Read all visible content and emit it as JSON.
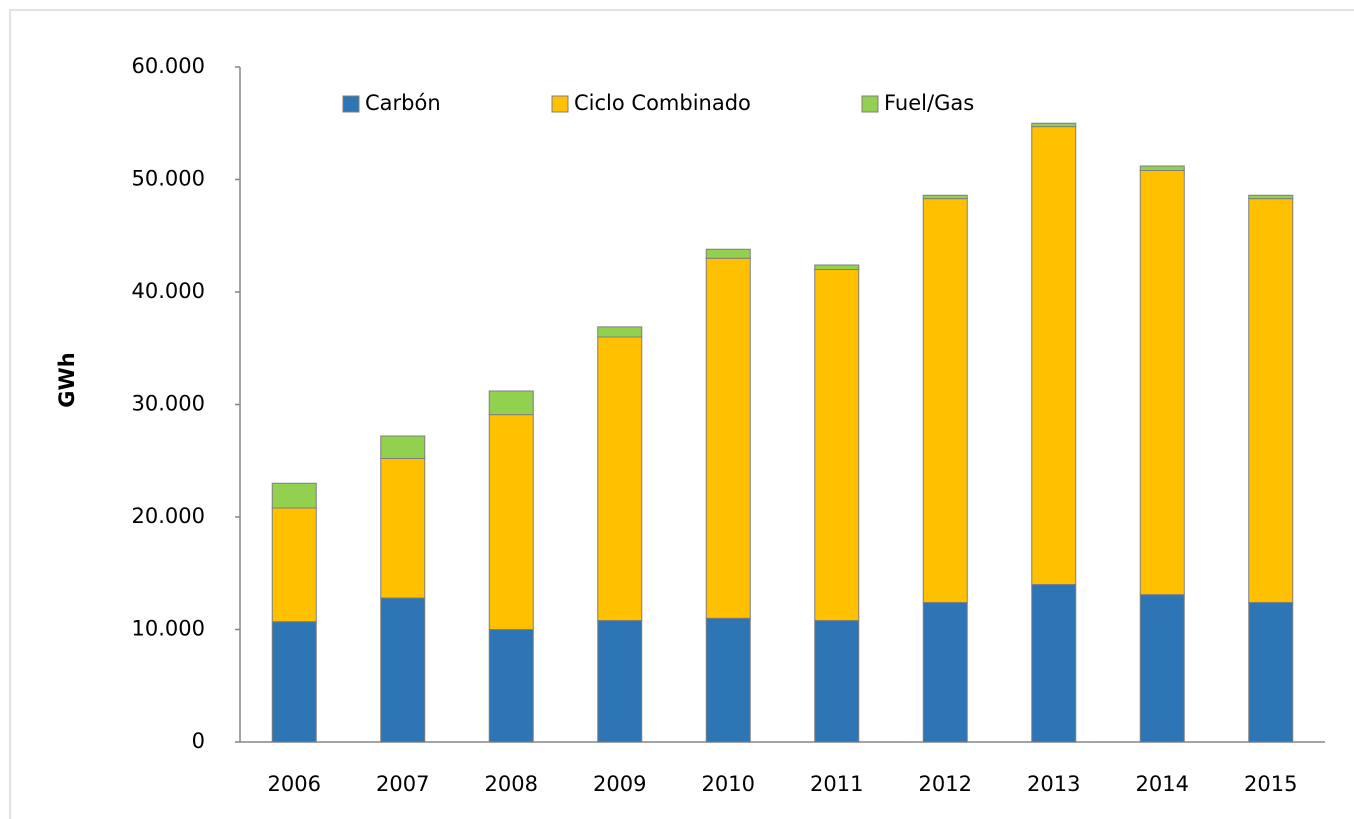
{
  "chart_data": {
    "type": "stacked_bar",
    "y_label": "GWh",
    "categories": [
      "2006",
      "2007",
      "2008",
      "2009",
      "2010",
      "2011",
      "2012",
      "2013",
      "2014",
      "2015"
    ],
    "series": [
      {
        "name": "Carbón",
        "color": "#2e75b6",
        "values": [
          10700,
          12800,
          10000,
          10800,
          11000,
          10800,
          12400,
          14000,
          13100,
          12400
        ]
      },
      {
        "name": "Ciclo Combinado",
        "color": "#ffc000",
        "values": [
          10100,
          12400,
          19100,
          25200,
          32000,
          31200,
          35900,
          40700,
          37700,
          35900
        ]
      },
      {
        "name": "Fuel/Gas",
        "color": "#92d050",
        "values": [
          2200,
          2000,
          2100,
          900,
          800,
          400,
          300,
          300,
          400,
          300
        ]
      }
    ],
    "ylim": [
      0,
      60000
    ],
    "yticks": [
      0,
      {
        "value": 10000,
        "label": "10.000"
      },
      {
        "value": 20000,
        "label": "20.000"
      },
      {
        "value": 30000,
        "label": "30.000"
      },
      {
        "value": 40000,
        "label": "40.000"
      },
      {
        "value": 50000,
        "label": "50.000"
      },
      {
        "value": 60000,
        "label": "60.000"
      }
    ],
    "legend": "top"
  }
}
